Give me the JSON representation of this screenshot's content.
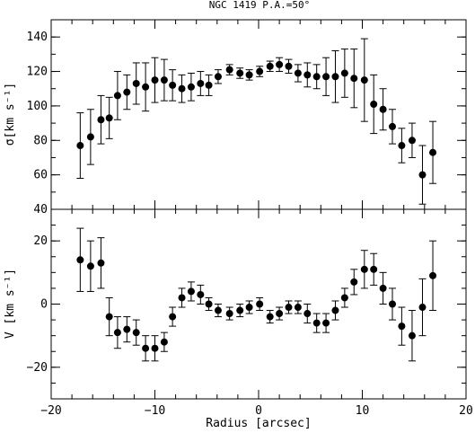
{
  "chart_data": [
    {
      "type": "scatter",
      "title": "NGC 1419   P.A.=50°",
      "xlabel": "",
      "ylabel": "σ[km s⁻¹]",
      "xlim": [
        -20,
        20
      ],
      "ylim": [
        40,
        150
      ],
      "x_ticks": [
        -20,
        -10,
        0,
        10,
        20
      ],
      "y_ticks": [
        40,
        60,
        80,
        100,
        120,
        140
      ],
      "y_tick_labels": [
        "40",
        "60",
        "80",
        "100",
        "120",
        "140"
      ],
      "grid": false,
      "points": [
        {
          "x": -17.2,
          "y": 77,
          "err": 19
        },
        {
          "x": -16.2,
          "y": 82,
          "err": 16
        },
        {
          "x": -15.2,
          "y": 92,
          "err": 14
        },
        {
          "x": -14.4,
          "y": 93,
          "err": 12
        },
        {
          "x": -13.6,
          "y": 106,
          "err": 14
        },
        {
          "x": -12.7,
          "y": 108,
          "err": 10
        },
        {
          "x": -11.8,
          "y": 113,
          "err": 12
        },
        {
          "x": -10.9,
          "y": 111,
          "err": 14
        },
        {
          "x": -10.0,
          "y": 115,
          "err": 13
        },
        {
          "x": -9.1,
          "y": 115,
          "err": 12
        },
        {
          "x": -8.3,
          "y": 112,
          "err": 9
        },
        {
          "x": -7.4,
          "y": 110,
          "err": 8
        },
        {
          "x": -6.5,
          "y": 111,
          "err": 8
        },
        {
          "x": -5.6,
          "y": 113,
          "err": 7
        },
        {
          "x": -4.8,
          "y": 112,
          "err": 6
        },
        {
          "x": -3.9,
          "y": 117,
          "err": 4
        },
        {
          "x": -2.8,
          "y": 121,
          "err": 3
        },
        {
          "x": -1.8,
          "y": 119,
          "err": 3
        },
        {
          "x": -0.9,
          "y": 118,
          "err": 3
        },
        {
          "x": 0.1,
          "y": 120,
          "err": 3
        },
        {
          "x": 1.1,
          "y": 123,
          "err": 3
        },
        {
          "x": 2.0,
          "y": 124,
          "err": 4
        },
        {
          "x": 2.9,
          "y": 123,
          "err": 4
        },
        {
          "x": 3.8,
          "y": 119,
          "err": 5
        },
        {
          "x": 4.7,
          "y": 118,
          "err": 7
        },
        {
          "x": 5.6,
          "y": 117,
          "err": 7
        },
        {
          "x": 6.5,
          "y": 117,
          "err": 11
        },
        {
          "x": 7.4,
          "y": 117,
          "err": 15
        },
        {
          "x": 8.3,
          "y": 119,
          "err": 14
        },
        {
          "x": 9.2,
          "y": 116,
          "err": 17
        },
        {
          "x": 10.2,
          "y": 115,
          "err": 24
        },
        {
          "x": 11.1,
          "y": 101,
          "err": 17
        },
        {
          "x": 12.0,
          "y": 98,
          "err": 12
        },
        {
          "x": 12.9,
          "y": 88,
          "err": 10
        },
        {
          "x": 13.8,
          "y": 77,
          "err": 10
        },
        {
          "x": 14.8,
          "y": 80,
          "err": 10
        },
        {
          "x": 15.8,
          "y": 60,
          "err": 17
        },
        {
          "x": 16.8,
          "y": 73,
          "err": 18
        }
      ]
    },
    {
      "type": "scatter",
      "title": "",
      "xlabel": "Radius [arcsec]",
      "ylabel": "V [km s⁻¹]",
      "xlim": [
        -20,
        20
      ],
      "ylim": [
        -30,
        30
      ],
      "x_ticks": [
        -20,
        -10,
        0,
        10,
        20
      ],
      "x_tick_labels": [
        "−20",
        "−10",
        "0",
        "10",
        "20"
      ],
      "y_ticks": [
        -20,
        0,
        20
      ],
      "y_tick_labels": [
        "−20",
        "0",
        "20"
      ],
      "grid": false,
      "points": [
        {
          "x": -17.2,
          "y": 14,
          "err": 10
        },
        {
          "x": -16.2,
          "y": 12,
          "err": 8
        },
        {
          "x": -15.2,
          "y": 13,
          "err": 8
        },
        {
          "x": -14.4,
          "y": -4,
          "err": 6
        },
        {
          "x": -13.6,
          "y": -9,
          "err": 5
        },
        {
          "x": -12.7,
          "y": -8,
          "err": 4
        },
        {
          "x": -11.8,
          "y": -9,
          "err": 4
        },
        {
          "x": -10.9,
          "y": -14,
          "err": 4
        },
        {
          "x": -10.0,
          "y": -14,
          "err": 4
        },
        {
          "x": -9.1,
          "y": -12,
          "err": 3
        },
        {
          "x": -8.3,
          "y": -4,
          "err": 3
        },
        {
          "x": -7.4,
          "y": 2,
          "err": 3
        },
        {
          "x": -6.5,
          "y": 4,
          "err": 3
        },
        {
          "x": -5.6,
          "y": 3,
          "err": 3
        },
        {
          "x": -4.8,
          "y": 0,
          "err": 2
        },
        {
          "x": -3.9,
          "y": -2,
          "err": 2
        },
        {
          "x": -2.8,
          "y": -3,
          "err": 2
        },
        {
          "x": -1.8,
          "y": -2,
          "err": 2
        },
        {
          "x": -0.9,
          "y": -1,
          "err": 2
        },
        {
          "x": 0.1,
          "y": 0,
          "err": 2
        },
        {
          "x": 1.1,
          "y": -4,
          "err": 2
        },
        {
          "x": 2.0,
          "y": -3,
          "err": 2
        },
        {
          "x": 2.9,
          "y": -1,
          "err": 2
        },
        {
          "x": 3.8,
          "y": -1,
          "err": 2
        },
        {
          "x": 4.7,
          "y": -3,
          "err": 3
        },
        {
          "x": 5.6,
          "y": -6,
          "err": 3
        },
        {
          "x": 6.5,
          "y": -6,
          "err": 3
        },
        {
          "x": 7.4,
          "y": -2,
          "err": 3
        },
        {
          "x": 8.3,
          "y": 2,
          "err": 3
        },
        {
          "x": 9.2,
          "y": 7,
          "err": 4
        },
        {
          "x": 10.2,
          "y": 11,
          "err": 6
        },
        {
          "x": 11.1,
          "y": 11,
          "err": 5
        },
        {
          "x": 12.0,
          "y": 5,
          "err": 5
        },
        {
          "x": 12.9,
          "y": 0,
          "err": 5
        },
        {
          "x": 13.8,
          "y": -7,
          "err": 6
        },
        {
          "x": 14.8,
          "y": -10,
          "err": 8
        },
        {
          "x": 15.8,
          "y": -1,
          "err": 9
        },
        {
          "x": 16.8,
          "y": 9,
          "err": 11
        }
      ]
    }
  ]
}
